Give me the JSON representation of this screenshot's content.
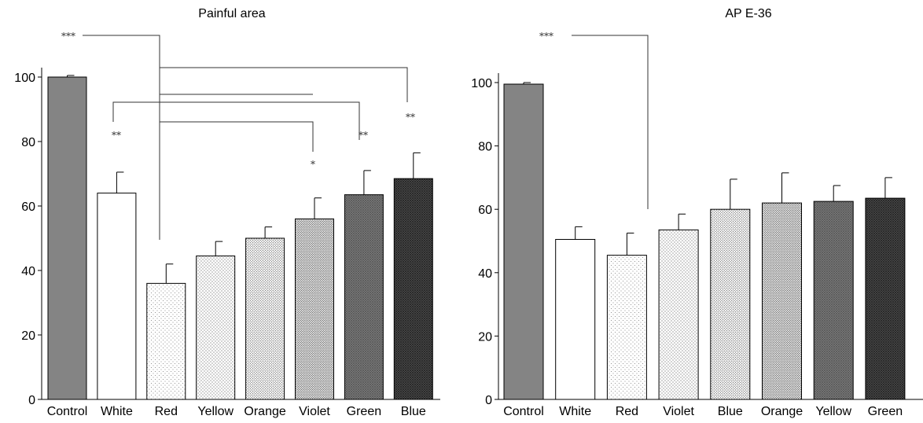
{
  "chart_data": [
    {
      "type": "bar",
      "title": "Painful area",
      "xlabel": "",
      "ylabel": "",
      "ylim": [
        0,
        100
      ],
      "yticks": [
        0,
        20,
        40,
        60,
        80,
        100
      ],
      "categories": [
        "Control",
        "White",
        "Red",
        "Yellow",
        "Orange",
        "Violet",
        "Green",
        "Blue"
      ],
      "values": [
        100,
        64,
        36,
        44.5,
        50,
        56,
        63.5,
        68.5
      ],
      "errors": [
        0.5,
        6.5,
        6,
        4.5,
        3.5,
        6.5,
        7.5,
        8
      ],
      "fill_patterns": [
        "solid-gray",
        "white",
        "dots-sparse",
        "dots-medium",
        "dots-dense",
        "dots-denser",
        "crosshatch-dark",
        "crosshatch-darker"
      ],
      "grid": false,
      "annotations": [
        {
          "text": "***",
          "bar": 0
        },
        {
          "text": "**",
          "bar": 1
        },
        {
          "text": "*",
          "bar": 5
        },
        {
          "text": "**",
          "bar": 6
        },
        {
          "text": "**",
          "bar": 7
        }
      ]
    },
    {
      "type": "bar",
      "title": "AP E-36",
      "xlabel": "",
      "ylabel": "",
      "ylim": [
        0,
        100
      ],
      "yticks": [
        0,
        20,
        40,
        60,
        80,
        100
      ],
      "categories": [
        "Control",
        "White",
        "Red",
        "Violet",
        "Blue",
        "Orange",
        "Yellow",
        "Green"
      ],
      "values": [
        99.5,
        50.5,
        45.5,
        53.5,
        60,
        62,
        62.5,
        63.5
      ],
      "errors": [
        0.5,
        4,
        7,
        5,
        9.5,
        9.5,
        5,
        6.5
      ],
      "fill_patterns": [
        "solid-gray",
        "white",
        "dots-sparse",
        "dots-medium",
        "dots-dense",
        "dots-denser",
        "crosshatch-dark",
        "crosshatch-darker"
      ],
      "grid": false,
      "annotations": [
        {
          "text": "***",
          "bar": 0
        }
      ]
    }
  ]
}
